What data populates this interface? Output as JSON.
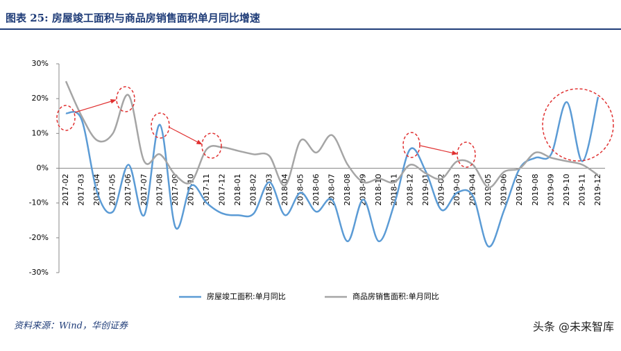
{
  "chart_data": {
    "type": "line",
    "title": "图表 25: 房屋竣工面积与商品房销售面积单月同比增速",
    "source": "资料来源：Wind，华创证券",
    "watermark": "头条 @未来智库",
    "categories": [
      "2017-02",
      "2017-03",
      "2017-04",
      "2017-05",
      "2017-06",
      "2017-07",
      "2017-08",
      "2017-09",
      "2017-10",
      "2017-11",
      "2017-12",
      "2018-01",
      "2018-02",
      "2018-03",
      "2018-04",
      "2018-05",
      "2018-06",
      "2018-07",
      "2018-08",
      "2018-09",
      "2018-10",
      "2018-11",
      "2018-12",
      "2019-01",
      "2019-02",
      "2019-03",
      "2019-04",
      "2019-05",
      "2019-06",
      "2019-07",
      "2019-08",
      "2019-09",
      "2019-10",
      "2019-11",
      "2019-12"
    ],
    "series": [
      {
        "name": "房屋竣工面积:单月同比",
        "color": "#5b9bd5",
        "values": [
          15.8,
          14,
          -7,
          -12.5,
          1,
          -13.5,
          12.5,
          -17,
          -5,
          -10,
          -13,
          -13.5,
          -13,
          -4,
          -13.5,
          -7,
          -12.5,
          -9,
          -21,
          -9,
          -21,
          -10,
          5.5,
          -1,
          -12,
          -7,
          -8,
          -22.5,
          -12,
          0,
          3,
          4,
          19,
          2,
          20.5
        ]
      },
      {
        "name": "商品房销售面积:单月同比",
        "color": "#a5a5a5",
        "values": [
          25,
          15,
          8,
          10,
          21,
          2,
          4,
          -2,
          -4,
          5.5,
          6,
          5,
          4,
          3.5,
          -5,
          8,
          4.5,
          9.5,
          1,
          -4,
          -3,
          -4,
          1,
          -1.5,
          -3,
          2,
          1,
          -5.5,
          -1,
          0,
          4.5,
          3,
          2,
          1,
          -2
        ]
      }
    ],
    "ylim": [
      -30,
      30
    ],
    "yticks": [
      {
        "value": -30,
        "label": "-30%"
      },
      {
        "value": -20,
        "label": "-20%"
      },
      {
        "value": -10,
        "label": "-10%"
      },
      {
        "value": 0,
        "label": "0%"
      },
      {
        "value": 10,
        "label": "10%"
      },
      {
        "value": 20,
        "label": "20%"
      },
      {
        "value": 30,
        "label": "30%"
      }
    ],
    "legend": "bottom"
  }
}
